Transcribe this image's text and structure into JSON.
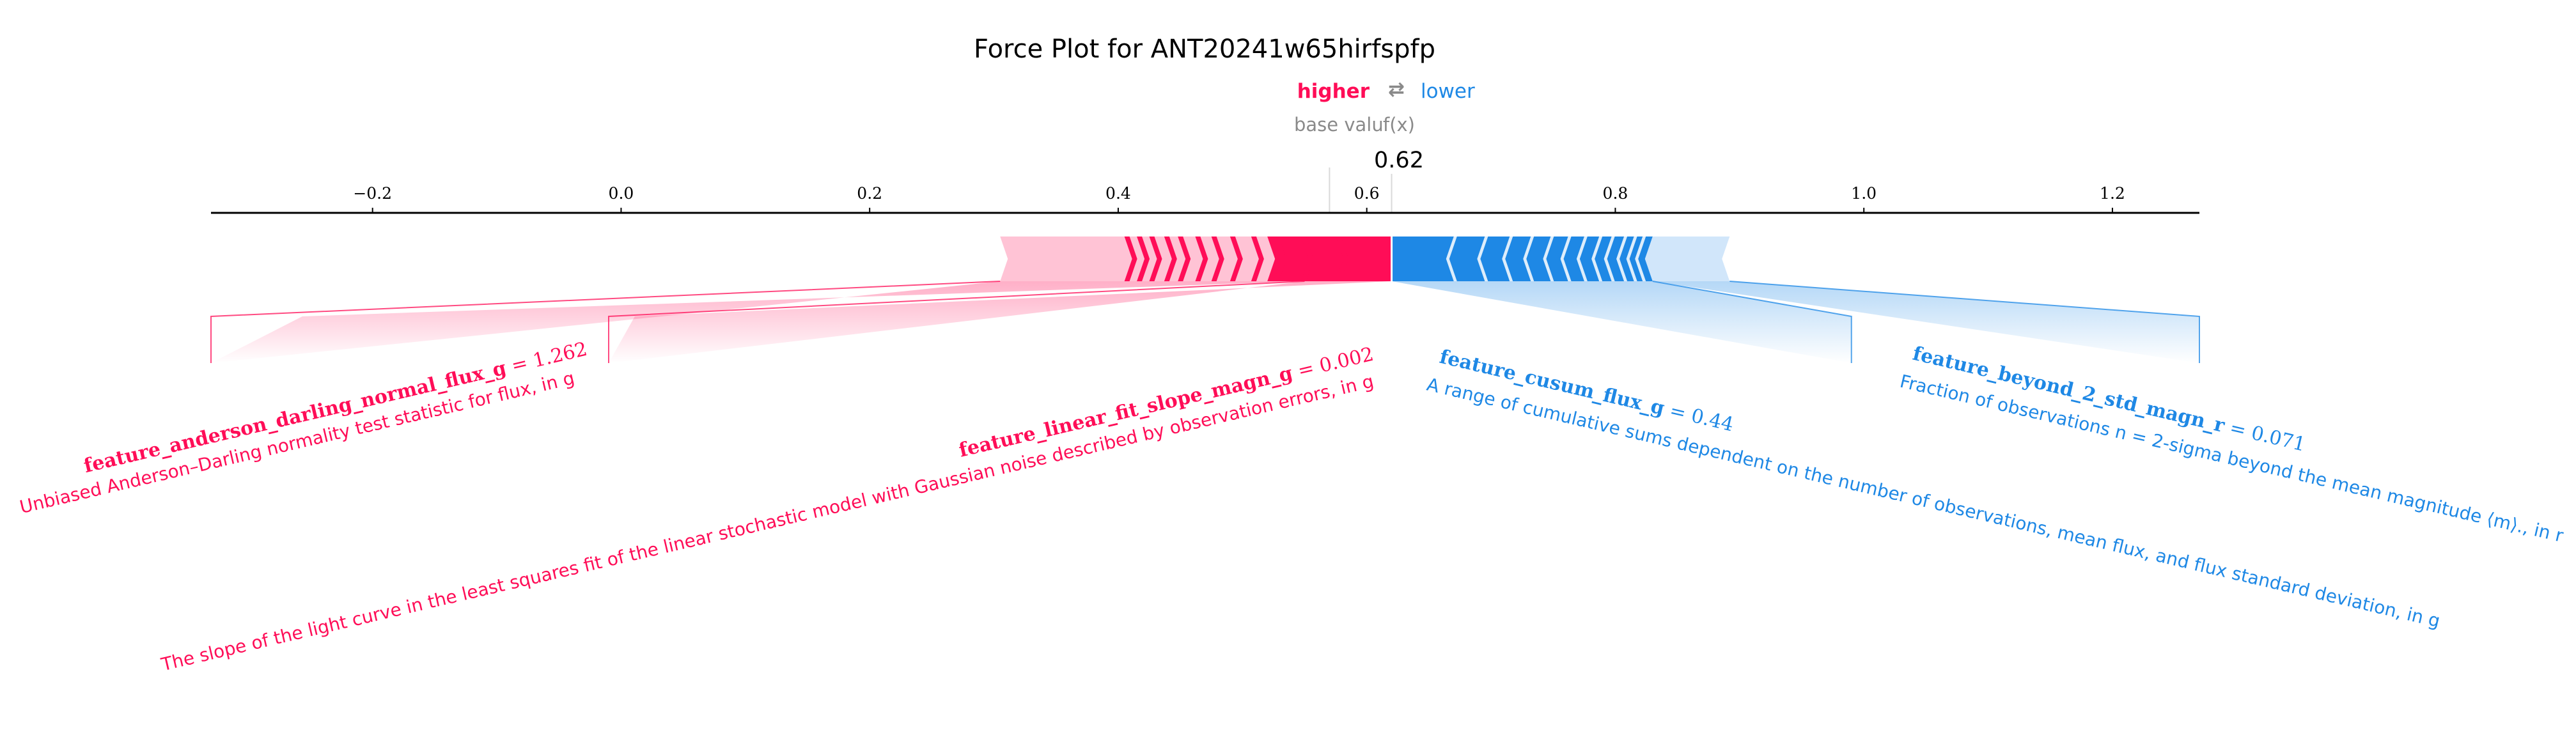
{
  "chart_data": {
    "type": "force",
    "title": "Force Plot for ANT20241w65hirfspfp",
    "legend": {
      "higher": "higher",
      "arrow": "⇄",
      "lower": "lower"
    },
    "base_value_label": "base valu",
    "fx_label": "f(x)",
    "fx_value": 0.62,
    "fx_value_text": "0.62",
    "base_value": 0.57,
    "xlim": [
      -0.33,
      1.27
    ],
    "ticks": [
      {
        "value": -0.2,
        "label": "−0.2"
      },
      {
        "value": 0.0,
        "label": "0.0"
      },
      {
        "value": 0.2,
        "label": "0.2"
      },
      {
        "value": 0.4,
        "label": "0.4"
      },
      {
        "value": 0.6,
        "label": "0.6"
      },
      {
        "value": 0.8,
        "label": "0.8"
      },
      {
        "value": 1.0,
        "label": "1.0"
      },
      {
        "value": 1.2,
        "label": "1.2"
      }
    ],
    "positive_range": [
      0.305,
      0.62
    ],
    "negative_range": [
      0.62,
      0.892
    ],
    "positive_strong_start": 0.52,
    "negative_strong_end": 0.83,
    "positive_chevrons": [
      0.405,
      0.415,
      0.425,
      0.437,
      0.448,
      0.462,
      0.475,
      0.49,
      0.507,
      0.525,
      0.547,
      0.575
    ],
    "negative_chevrons": [
      0.67,
      0.695,
      0.715,
      0.732,
      0.748,
      0.762,
      0.775,
      0.787,
      0.797,
      0.807,
      0.815,
      0.822
    ],
    "features": [
      {
        "side": "positive",
        "name": "feature_anderson_darling_normal_flux_g",
        "value_text": " = 1.262",
        "description": "Unbiased Anderson–Darling normality test statistic for flux, in g",
        "stem_x": -0.33,
        "seg": [
          0.305,
          0.55
        ]
      },
      {
        "side": "positive",
        "name": "feature_linear_fit_slope_magn_g",
        "value_text": " = 0.002",
        "description": "The slope of the light curve in the least squares fit of the linear stochastic model with Gaussian noise described by observation errors, in g",
        "stem_x": -0.01,
        "seg": [
          0.55,
          0.62
        ]
      },
      {
        "side": "negative",
        "name": "feature_cusum_flux_g",
        "value_text": " = 0.44",
        "description": "A range of cumulative sums dependent on the number of observations, mean flux, and flux standard deviation, in g",
        "stem_x": 0.99,
        "seg": [
          0.62,
          0.83
        ]
      },
      {
        "side": "negative",
        "name": "feature_beyond_2_std_magn_r",
        "value_text": " = 0.071",
        "description": "Fraction of observations n = 2-sigma beyond the mean magnitude ⟨m⟩., in r",
        "stem_x": 1.27,
        "seg": [
          0.83,
          0.892
        ]
      }
    ]
  },
  "colors": {
    "positive": "#ff0d57",
    "positive_light": "#ffc3d5",
    "negative": "#1e88e5",
    "negative_light": "#d1e6fa",
    "axis": "#000000",
    "muted": "#8a8a8a"
  }
}
